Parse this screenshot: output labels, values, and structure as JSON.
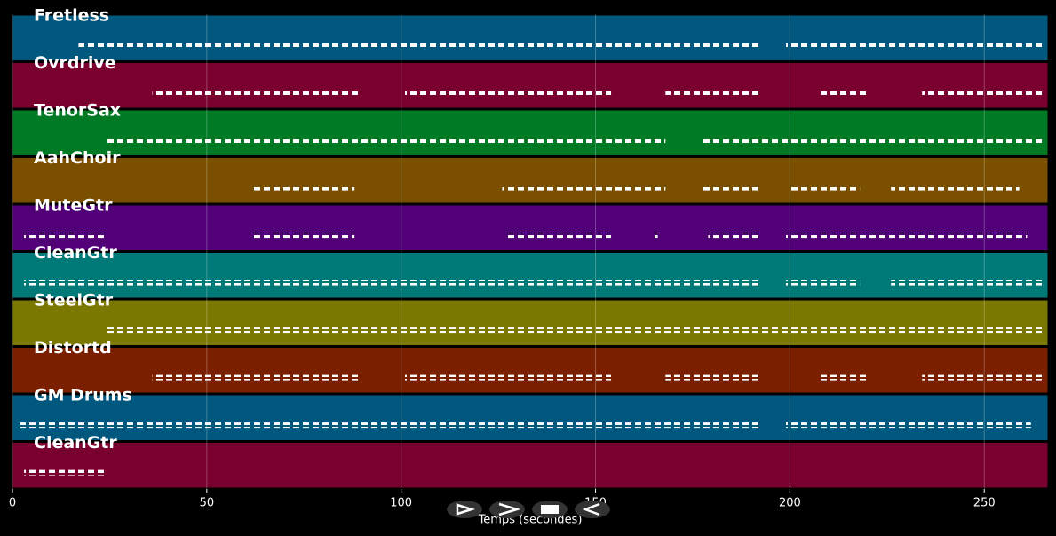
{
  "chart_data": {
    "type": "timeline",
    "x_label": "Temps (secondes)",
    "xlim": [
      0,
      266.4
    ],
    "xticks": [
      0,
      50,
      100,
      150,
      200,
      250
    ],
    "grid": true,
    "tracks": [
      {
        "name": "Fretless",
        "color": "#00587f",
        "segments": [
          [
            17,
            192
          ],
          [
            199,
            265
          ]
        ]
      },
      {
        "name": "Ovrdrive",
        "color": "#7a0030",
        "segments": [
          [
            36,
            89
          ],
          [
            101,
            154
          ],
          [
            168,
            192
          ],
          [
            207,
            220
          ],
          [
            234,
            265
          ]
        ]
      },
      {
        "name": "TenorSax",
        "color": "#007a25",
        "segments": [
          [
            24,
            168
          ],
          [
            177,
            265
          ]
        ]
      },
      {
        "name": "AahChoir",
        "color": "#7a5000",
        "segments": [
          [
            62,
            88
          ],
          [
            126,
            168
          ],
          [
            177,
            192
          ],
          [
            200,
            218
          ],
          [
            226,
            259
          ]
        ]
      },
      {
        "name": "MuteGtr",
        "color": "#520078",
        "segments": [
          [
            3,
            24
          ],
          [
            62,
            88
          ],
          [
            127,
            154
          ],
          [
            165,
            166
          ],
          [
            179,
            192
          ],
          [
            199,
            261
          ]
        ]
      },
      {
        "name": "CleanGtr",
        "color": "#007a78",
        "segments": [
          [
            3,
            192
          ],
          [
            199,
            218
          ],
          [
            226,
            265
          ]
        ]
      },
      {
        "name": "SteelGtr",
        "color": "#7a7800",
        "segments": [
          [
            24,
            265
          ]
        ]
      },
      {
        "name": "Distortd",
        "color": "#7a2000",
        "segments": [
          [
            36,
            89
          ],
          [
            101,
            154
          ],
          [
            168,
            192
          ],
          [
            207,
            220
          ],
          [
            234,
            265
          ]
        ]
      },
      {
        "name": "GM Drums",
        "color": "#00587f",
        "segments": [
          [
            2,
            192
          ],
          [
            199,
            262
          ]
        ]
      },
      {
        "name": "CleanGtr",
        "color": "#7a0030",
        "segments": [
          [
            3,
            24
          ]
        ]
      }
    ]
  }
}
